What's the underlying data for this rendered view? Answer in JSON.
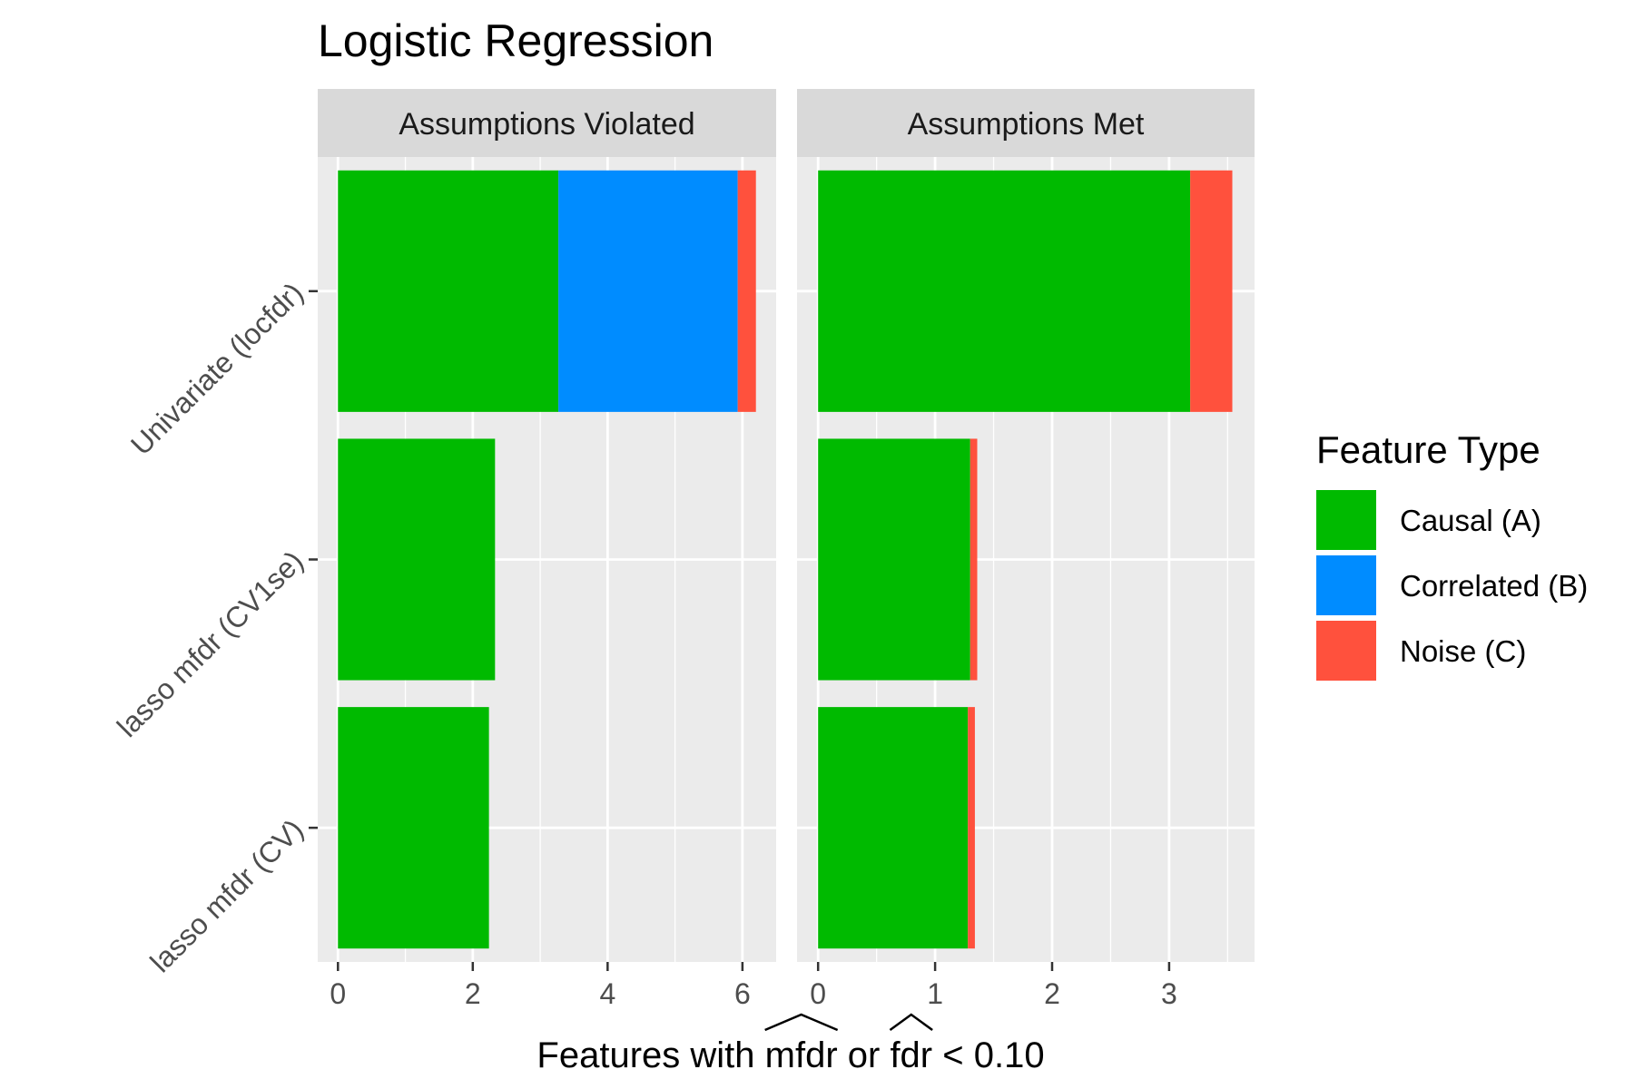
{
  "chart_data": {
    "type": "bar",
    "orientation": "horizontal",
    "stacked": true,
    "title": "Logistic Regression",
    "xlabel": "Features with mfdr or fdr < 0.10",
    "xlabel_parts": {
      "prefix": "Features with ",
      "hat1": "mfdr",
      "middle": " or ",
      "hat2": "fdr",
      "suffix": " < 0.10"
    },
    "ylabel": "",
    "categories": [
      "Univariate (locfdr)",
      "lasso mfdr (CV1se)",
      "lasso mfdr (CV)"
    ],
    "legend": {
      "title": "Feature Type",
      "position": "right",
      "entries": [
        {
          "name": "Causal (A)",
          "color": "#00BA00"
        },
        {
          "name": "Correlated (B)",
          "color": "#008CFF"
        },
        {
          "name": "Noise (C)",
          "color": "#FF513D"
        }
      ]
    },
    "panels": [
      {
        "strip_label": "Assumptions Violated",
        "xlim": [
          -0.3,
          6.5
        ],
        "x_ticks": [
          0,
          2,
          4,
          6
        ],
        "x_tick_labels": [
          "0",
          "2",
          "4",
          "6"
        ],
        "series": [
          {
            "name": "Causal (A)",
            "values": [
              3.27,
              2.33,
              2.24
            ]
          },
          {
            "name": "Correlated (B)",
            "values": [
              2.66,
              0,
              0
            ]
          },
          {
            "name": "Noise (C)",
            "values": [
              0.27,
              0,
              0
            ]
          }
        ]
      },
      {
        "strip_label": "Assumptions Met",
        "xlim": [
          -0.18,
          3.73
        ],
        "x_ticks": [
          0,
          1,
          2,
          3
        ],
        "x_tick_labels": [
          "0",
          "1",
          "2",
          "3"
        ],
        "series": [
          {
            "name": "Causal (A)",
            "values": [
              3.18,
              1.3,
              1.28
            ]
          },
          {
            "name": "Correlated (B)",
            "values": [
              0,
              0,
              0
            ]
          },
          {
            "name": "Noise (C)",
            "values": [
              0.36,
              0.06,
              0.06
            ]
          }
        ]
      }
    ],
    "grid": true
  }
}
